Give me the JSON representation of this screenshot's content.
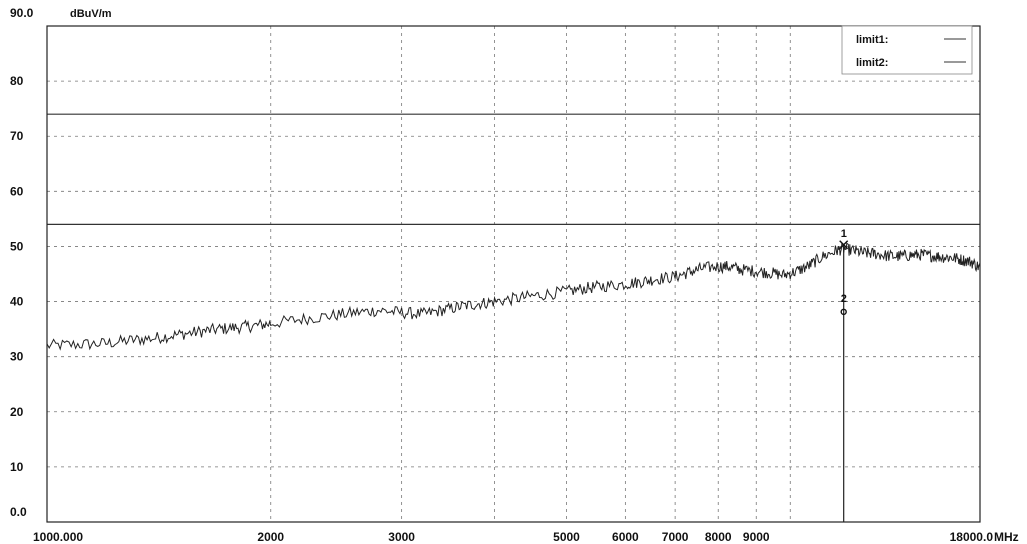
{
  "chart_data": {
    "type": "line",
    "title": "",
    "xlabel": "",
    "ylabel": "dBuV/m",
    "x_unit": "MHz",
    "x_scale": "log",
    "xlim": [
      1000,
      18000
    ],
    "ylim": [
      0,
      90
    ],
    "grid": true,
    "legend_position": "top-right",
    "x_tick_labels": [
      {
        "value": 1000,
        "label": "1000.000"
      },
      {
        "value": 2000,
        "label": "2000"
      },
      {
        "value": 3000,
        "label": "3000"
      },
      {
        "value": 5000,
        "label": "5000"
      },
      {
        "value": 6000,
        "label": "6000"
      },
      {
        "value": 7000,
        "label": "7000"
      },
      {
        "value": 8000,
        "label": "8000"
      },
      {
        "value": 9000,
        "label": "9000"
      },
      {
        "value": 18000,
        "label": "18000.0"
      }
    ],
    "y_tick_labels": [
      {
        "value": 0,
        "label": "0.0"
      },
      {
        "value": 10,
        "label": "10"
      },
      {
        "value": 20,
        "label": "20"
      },
      {
        "value": 30,
        "label": "30"
      },
      {
        "value": 40,
        "label": "40"
      },
      {
        "value": 50,
        "label": "50"
      },
      {
        "value": 60,
        "label": "60"
      },
      {
        "value": 70,
        "label": "70"
      },
      {
        "value": 80,
        "label": "80"
      },
      {
        "value": 90,
        "label": "90.0"
      }
    ],
    "limit_lines": [
      {
        "name": "limit1:",
        "value": 74
      },
      {
        "name": "limit2:",
        "value": 54
      }
    ],
    "series": [
      {
        "x": [
          1000,
          1100,
          1200,
          1300,
          1400,
          1500,
          1600,
          1700,
          1800,
          1900,
          2000,
          2200,
          2400,
          2600,
          2800,
          3000,
          3200,
          3400,
          3600,
          3800,
          4000,
          4300,
          4600,
          5000,
          5300,
          5600,
          6000,
          6300,
          6600,
          7000,
          7300,
          7600,
          8000,
          8300,
          8600,
          9000,
          9400,
          9800,
          10200,
          10600,
          11000,
          11500,
          11800,
          12200,
          12600,
          13000,
          13500,
          14000,
          14500,
          15000,
          15500,
          16000,
          16500,
          17000,
          17500,
          18000
        ],
        "values": [
          32,
          32.2,
          32.4,
          33,
          33.4,
          34,
          34.5,
          35,
          35.3,
          35.6,
          36,
          36.8,
          37.4,
          38,
          38.4,
          38,
          37.7,
          38.4,
          39.1,
          39.6,
          40,
          40.6,
          41.2,
          41.8,
          42.4,
          42.8,
          43.2,
          43.6,
          44.1,
          44.5,
          45.3,
          46,
          46.4,
          46.3,
          45.8,
          45.5,
          45.2,
          44.8,
          45.5,
          46.5,
          48,
          49.2,
          49.6,
          49.2,
          48.8,
          48.7,
          48.3,
          48.2,
          48.4,
          48.5,
          48.3,
          48.1,
          48,
          47.6,
          47.2,
          46.2
        ]
      }
    ],
    "markers": [
      {
        "label": "1",
        "x": 11800,
        "y": 50.3,
        "symbol": "x"
      },
      {
        "label": "2",
        "x": 11800,
        "y": 38.5,
        "symbol": "o"
      }
    ]
  }
}
